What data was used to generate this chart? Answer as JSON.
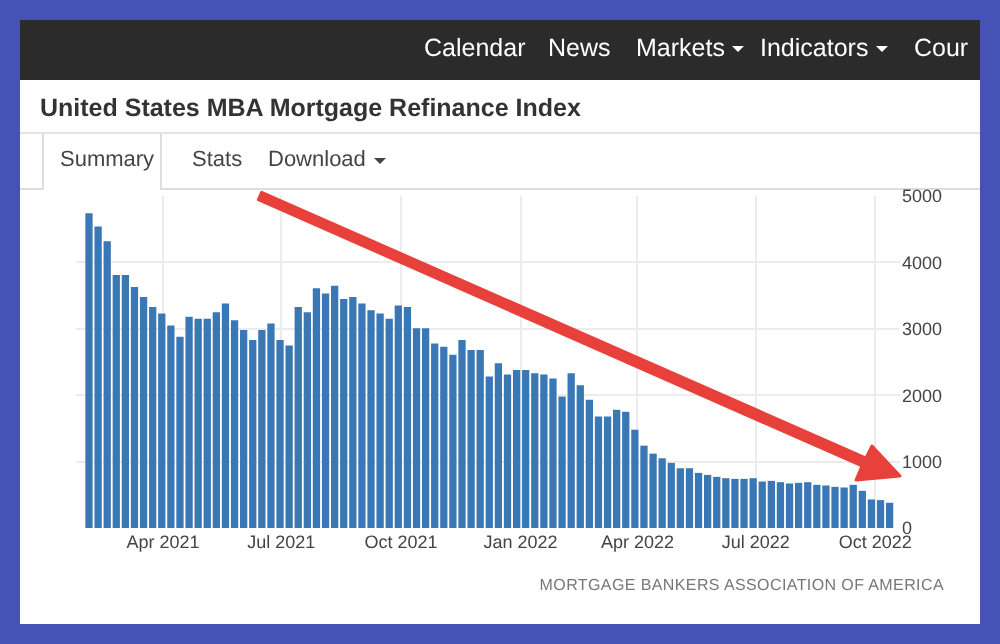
{
  "chart_data": {
    "type": "bar",
    "title": "United States MBA Mortgage Refinance Index",
    "annotations": [
      "Calendar",
      "News",
      "Markets",
      "Indicators",
      "Cour",
      "Summary",
      "Stats",
      "Download",
      "MORTGAGE BANKERS ASSOCIATION OF AMERICA"
    ],
    "x": [
      "2021-02-03",
      "2021-02-10",
      "2021-02-17",
      "2021-02-24",
      "2021-03-03",
      "2021-03-10",
      "2021-03-17",
      "2021-03-24",
      "2021-03-31",
      "2021-04-07",
      "2021-04-14",
      "2021-04-21",
      "2021-04-28",
      "2021-05-05",
      "2021-05-12",
      "2021-05-19",
      "2021-05-26",
      "2021-06-02",
      "2021-06-09",
      "2021-06-16",
      "2021-06-23",
      "2021-06-30",
      "2021-07-07",
      "2021-07-14",
      "2021-07-21",
      "2021-07-28",
      "2021-08-04",
      "2021-08-11",
      "2021-08-18",
      "2021-08-25",
      "2021-09-01",
      "2021-09-08",
      "2021-09-15",
      "2021-09-22",
      "2021-09-29",
      "2021-10-06",
      "2021-10-13",
      "2021-10-20",
      "2021-10-27",
      "2021-11-03",
      "2021-11-10",
      "2021-11-17",
      "2021-11-24",
      "2021-12-01",
      "2021-12-08",
      "2021-12-15",
      "2021-12-22",
      "2021-12-29",
      "2022-01-05",
      "2022-01-12",
      "2022-01-19",
      "2022-01-26",
      "2022-02-02",
      "2022-02-09",
      "2022-02-16",
      "2022-02-23",
      "2022-03-02",
      "2022-03-09",
      "2022-03-16",
      "2022-03-23",
      "2022-03-30",
      "2022-04-06",
      "2022-04-13",
      "2022-04-20",
      "2022-04-27",
      "2022-05-04",
      "2022-05-11",
      "2022-05-18",
      "2022-05-25",
      "2022-06-01",
      "2022-06-08",
      "2022-06-15",
      "2022-06-22",
      "2022-06-29",
      "2022-07-06",
      "2022-07-13",
      "2022-07-20",
      "2022-07-27",
      "2022-08-03",
      "2022-08-10",
      "2022-08-17",
      "2022-08-24",
      "2022-08-31",
      "2022-09-07",
      "2022-09-14",
      "2022-09-21",
      "2022-09-28",
      "2022-10-05",
      "2022-10-12"
    ],
    "values": [
      4740,
      4540,
      4320,
      3810,
      3810,
      3630,
      3480,
      3330,
      3230,
      3050,
      2880,
      3180,
      3150,
      3150,
      3250,
      3380,
      3130,
      2980,
      2830,
      2980,
      3080,
      2830,
      2750,
      3330,
      3250,
      3610,
      3530,
      3650,
      3450,
      3480,
      3380,
      3280,
      3230,
      3150,
      3350,
      3330,
      3010,
      3010,
      2780,
      2730,
      2610,
      2830,
      2680,
      2680,
      2280,
      2480,
      2310,
      2380,
      2380,
      2330,
      2310,
      2250,
      1980,
      2330,
      2150,
      1930,
      1680,
      1680,
      1780,
      1750,
      1480,
      1240,
      1120,
      1050,
      980,
      900,
      900,
      830,
      800,
      770,
      750,
      740,
      740,
      750,
      700,
      710,
      690,
      670,
      680,
      690,
      650,
      640,
      620,
      610,
      650,
      560,
      430,
      420,
      380
    ],
    "color": "#3a78b5",
    "xlim": [
      "2021-01-24",
      "2022-10-20"
    ],
    "xticks": [
      {
        "value": "2021-04-01",
        "label": "Apr 2021"
      },
      {
        "value": "2021-07-01",
        "label": "Jul 2021"
      },
      {
        "value": "2021-10-01",
        "label": "Oct 2021"
      },
      {
        "value": "2022-01-01",
        "label": "Jan 2022"
      },
      {
        "value": "2022-04-01",
        "label": "Apr 2022"
      },
      {
        "value": "2022-07-01",
        "label": "Jul 2022"
      },
      {
        "value": "2022-10-01",
        "label": "Oct 2022"
      }
    ],
    "ylim": [
      0,
      5000
    ],
    "yticks": [
      0,
      1000,
      2000,
      3000,
      4000,
      5000
    ],
    "grid": true
  }
}
